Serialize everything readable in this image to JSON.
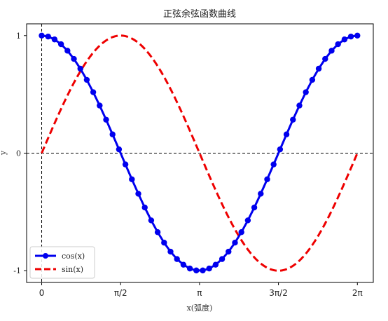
{
  "chart_data": {
    "type": "line",
    "title": "正弦余弦函数曲线",
    "xlabel": "x(弧度)",
    "ylabel": "y",
    "xlim": [
      -0.3,
      6.6
    ],
    "ylim": [
      -1.1,
      1.1
    ],
    "x_ticks": [
      {
        "value": 0,
        "label": "0"
      },
      {
        "value": 1.5708,
        "label": "π/2"
      },
      {
        "value": 3.1416,
        "label": "π"
      },
      {
        "value": 4.7124,
        "label": "3π/2"
      },
      {
        "value": 6.2832,
        "label": "2π"
      }
    ],
    "y_ticks": [
      {
        "value": 1,
        "label": "1"
      },
      {
        "value": 0,
        "label": "0"
      },
      {
        "value": -1,
        "label": "-1"
      }
    ],
    "reference_lines": {
      "x": 0,
      "y": 0
    },
    "legend_position": "lower-left",
    "series": [
      {
        "name": "cos(x)",
        "color": "#0000ee",
        "style": "solid-with-markers",
        "function": "cos",
        "x_range": [
          0,
          6.2832
        ],
        "points": 50
      },
      {
        "name": "sin(x)",
        "color": "#ee0000",
        "style": "dashed",
        "function": "sin",
        "x_range": [
          0,
          6.2832
        ],
        "points": 200
      }
    ],
    "grid": false
  }
}
